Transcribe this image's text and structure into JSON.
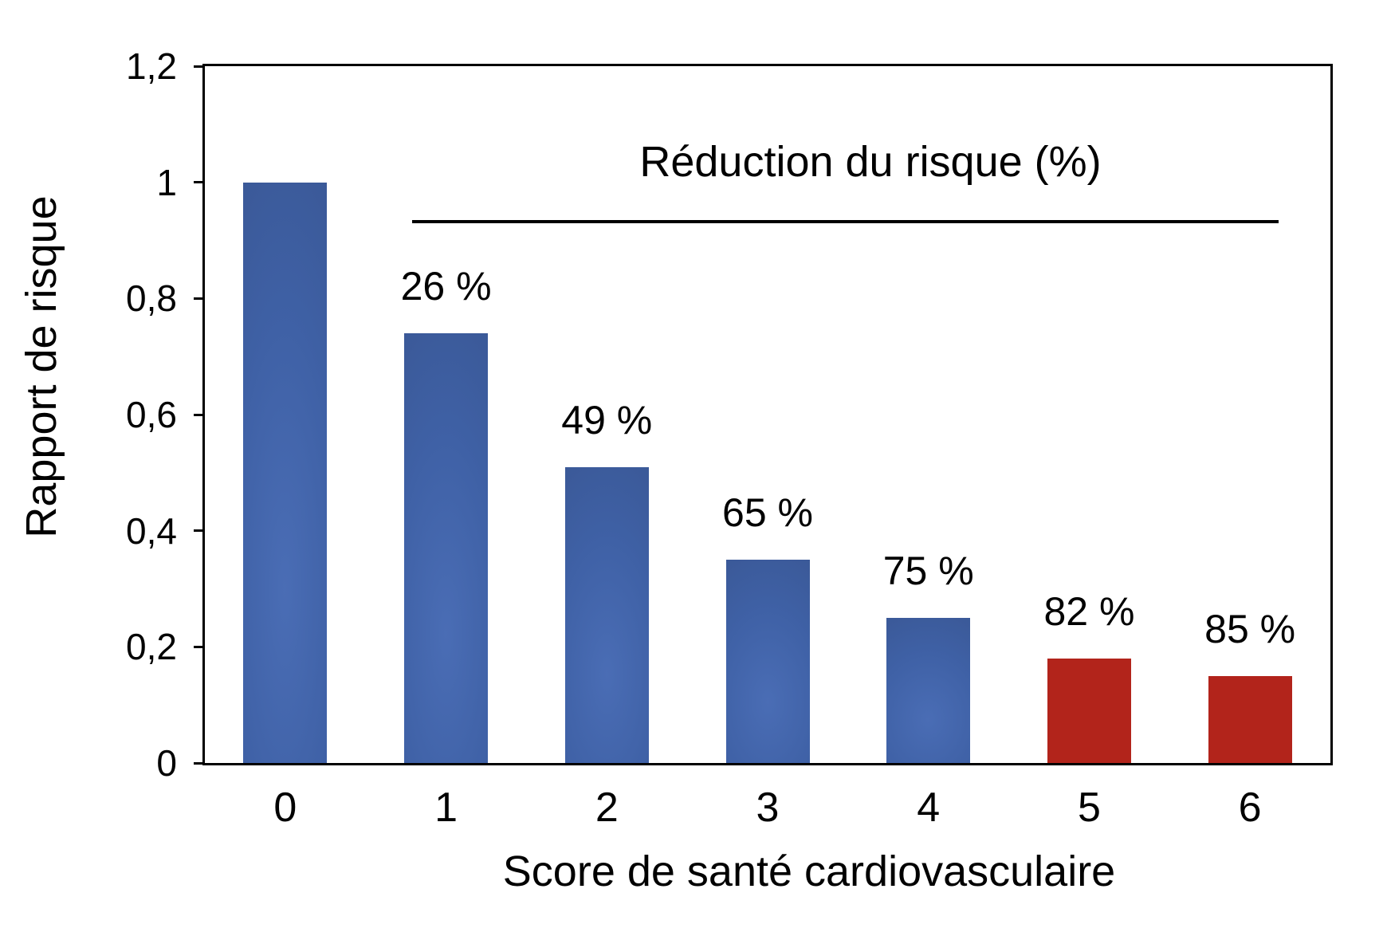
{
  "chart_data": {
    "type": "bar",
    "title": "Réduction du risque (%)",
    "xlabel": "Score de santé cardiovasculaire",
    "ylabel": "Rapport de risque",
    "categories": [
      "0",
      "1",
      "2",
      "3",
      "4",
      "5",
      "6"
    ],
    "values": [
      1.0,
      0.74,
      0.51,
      0.35,
      0.25,
      0.18,
      0.15
    ],
    "bar_labels": [
      "",
      "26 %",
      "49 %",
      "65 %",
      "75 %",
      "82 %",
      "85 %"
    ],
    "bar_colors": [
      "blue",
      "blue",
      "blue",
      "blue",
      "blue",
      "red",
      "red"
    ],
    "ylim": [
      0,
      1.2
    ],
    "yticks": [
      {
        "value": 0,
        "label": "0"
      },
      {
        "value": 0.2,
        "label": "0,2"
      },
      {
        "value": 0.4,
        "label": "0,4"
      },
      {
        "value": 0.6,
        "label": "0,6"
      },
      {
        "value": 0.8,
        "label": "0,8"
      },
      {
        "value": 1.0,
        "label": "1"
      },
      {
        "value": 1.2,
        "label": "1,2"
      }
    ],
    "grid": false,
    "legend": "none",
    "annotation": {
      "label": "Réduction du risque (%)",
      "underline": true
    }
  },
  "colors": {
    "bar_blue": "#3F61A6",
    "bar_blue_light": "#4A6DB5",
    "bar_blue_dark": "#38548F",
    "bar_red": "#B2241B",
    "axis": "#000000"
  }
}
